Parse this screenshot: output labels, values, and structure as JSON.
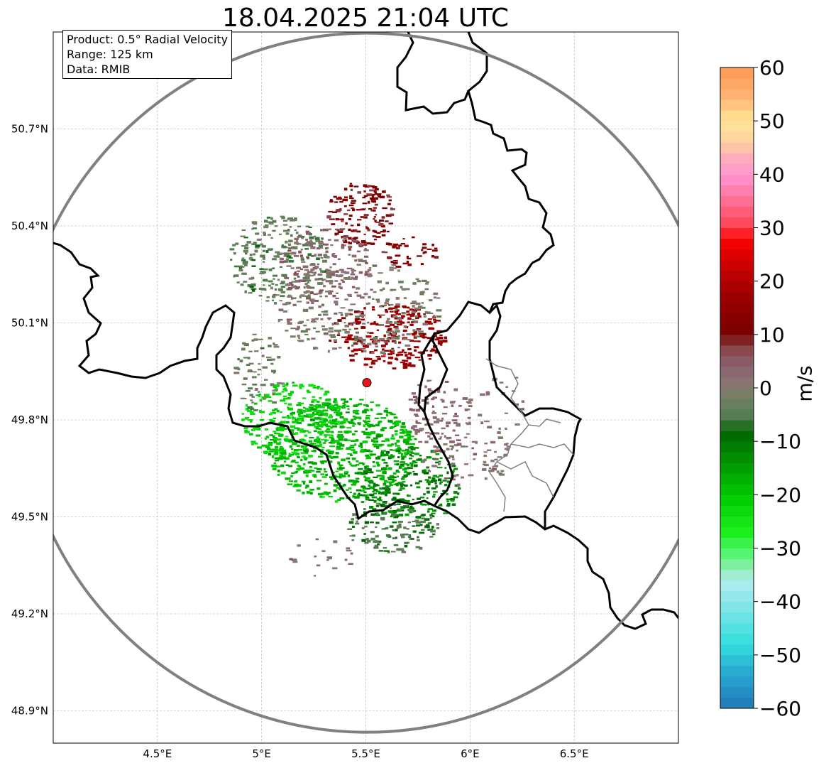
{
  "title": "18.04.2025 21:04 UTC",
  "info": {
    "product": "Product: 0.5° Radial Velocity",
    "range": "Range: 125 km",
    "data": "Data: RMIB"
  },
  "map": {
    "lon_range": [
      4.0,
      7.0
    ],
    "lat_range": [
      48.8,
      51.0
    ],
    "lon_ticks": [
      {
        "value": 4.5,
        "label": "4.5°E"
      },
      {
        "value": 5.0,
        "label": "5°E"
      },
      {
        "value": 5.5,
        "label": "5.5°E"
      },
      {
        "value": 6.0,
        "label": "6°E"
      },
      {
        "value": 6.5,
        "label": "6.5°E"
      }
    ],
    "lat_ticks": [
      {
        "value": 48.9,
        "label": "48.9°N"
      },
      {
        "value": 49.2,
        "label": "49.2°N"
      },
      {
        "value": 49.5,
        "label": "49.5°N"
      },
      {
        "value": 49.8,
        "label": "49.8°N"
      },
      {
        "value": 50.1,
        "label": "50.1°N"
      },
      {
        "value": 50.4,
        "label": "50.4°N"
      },
      {
        "value": 50.7,
        "label": "50.7°N"
      }
    ],
    "radar_site": {
      "lon": 5.505,
      "lat": 49.915,
      "color": "#e8141e"
    },
    "range_ring_color": "#808080",
    "grid": true
  },
  "colorbar": {
    "label": "m/s",
    "ticks": [
      60,
      50,
      40,
      30,
      20,
      10,
      0,
      -10,
      -20,
      -30,
      -40,
      -50,
      -60
    ],
    "tick_labels": [
      "60",
      "50",
      "40",
      "30",
      "20",
      "10",
      "0",
      "−10",
      "−20",
      "−30",
      "−40",
      "−50",
      "−60"
    ],
    "range": [
      -60,
      60
    ],
    "stops": [
      {
        "v": -60,
        "c": "#1f77b4"
      },
      {
        "v": -56,
        "c": "#2396c8"
      },
      {
        "v": -52,
        "c": "#2ab4d2"
      },
      {
        "v": -48,
        "c": "#33dede"
      },
      {
        "v": -40,
        "c": "#8ae6e6"
      },
      {
        "v": -36,
        "c": "#b4ecf0"
      },
      {
        "v": -34,
        "c": "#90eeb0"
      },
      {
        "v": -31,
        "c": "#55f575"
      },
      {
        "v": -27,
        "c": "#1ef01e"
      },
      {
        "v": -20,
        "c": "#00c800"
      },
      {
        "v": -14,
        "c": "#009600"
      },
      {
        "v": -8,
        "c": "#006400"
      },
      {
        "v": -6,
        "c": "#4f7a4f"
      },
      {
        "v": -2,
        "c": "#6e8060"
      },
      {
        "v": 0,
        "c": "#8a7a72"
      },
      {
        "v": 4,
        "c": "#8a6272"
      },
      {
        "v": 8,
        "c": "#8a4040"
      },
      {
        "v": 10,
        "c": "#780000"
      },
      {
        "v": 18,
        "c": "#a00000"
      },
      {
        "v": 26,
        "c": "#e60000"
      },
      {
        "v": 28,
        "c": "#ff0000"
      },
      {
        "v": 30,
        "c": "#ff4050"
      },
      {
        "v": 36,
        "c": "#ff78a0"
      },
      {
        "v": 40,
        "c": "#ff96d2"
      },
      {
        "v": 44,
        "c": "#ffb4b4"
      },
      {
        "v": 46,
        "c": "#ffd2a0"
      },
      {
        "v": 50,
        "c": "#ffe696"
      },
      {
        "v": 54,
        "c": "#ffb878"
      },
      {
        "v": 60,
        "c": "#ff9650"
      }
    ]
  },
  "echo_regions": [
    {
      "lon": 5.38,
      "lat": 49.71,
      "rx": 0.36,
      "ry": 0.16,
      "vel": -18,
      "density": 0.85
    },
    {
      "lon": 5.15,
      "lat": 49.8,
      "rx": 0.25,
      "ry": 0.12,
      "vel": -22,
      "density": 0.8
    },
    {
      "lon": 5.7,
      "lat": 49.6,
      "rx": 0.25,
      "ry": 0.12,
      "vel": -12,
      "density": 0.7
    },
    {
      "lon": 5.62,
      "lat": 49.47,
      "rx": 0.22,
      "ry": 0.08,
      "vel": -6,
      "density": 0.6
    },
    {
      "lon": 5.6,
      "lat": 50.06,
      "rx": 0.28,
      "ry": 0.1,
      "vel": 16,
      "density": 0.75
    },
    {
      "lon": 5.47,
      "lat": 50.44,
      "rx": 0.16,
      "ry": 0.1,
      "vel": 11,
      "density": 0.8
    },
    {
      "lon": 5.7,
      "lat": 50.32,
      "rx": 0.14,
      "ry": 0.05,
      "vel": 12,
      "density": 0.5
    },
    {
      "lon": 5.08,
      "lat": 50.3,
      "rx": 0.24,
      "ry": 0.14,
      "vel": -4,
      "density": 0.6
    },
    {
      "lon": 5.3,
      "lat": 50.28,
      "rx": 0.22,
      "ry": 0.12,
      "vel": 4,
      "density": 0.5
    },
    {
      "lon": 5.85,
      "lat": 49.82,
      "rx": 0.16,
      "ry": 0.12,
      "vel": 3,
      "density": 0.45
    },
    {
      "lon": 5.98,
      "lat": 49.7,
      "rx": 0.22,
      "ry": 0.1,
      "vel": 1,
      "density": 0.3
    },
    {
      "lon": 5.45,
      "lat": 50.15,
      "rx": 0.4,
      "ry": 0.15,
      "vel": 0,
      "density": 0.4
    },
    {
      "lon": 4.98,
      "lat": 49.95,
      "rx": 0.12,
      "ry": 0.12,
      "vel": -3,
      "density": 0.4
    },
    {
      "lon": 6.15,
      "lat": 49.85,
      "rx": 0.12,
      "ry": 0.1,
      "vel": 2,
      "density": 0.15
    },
    {
      "lon": 5.25,
      "lat": 49.38,
      "rx": 0.18,
      "ry": 0.06,
      "vel": 2,
      "density": 0.15
    }
  ]
}
